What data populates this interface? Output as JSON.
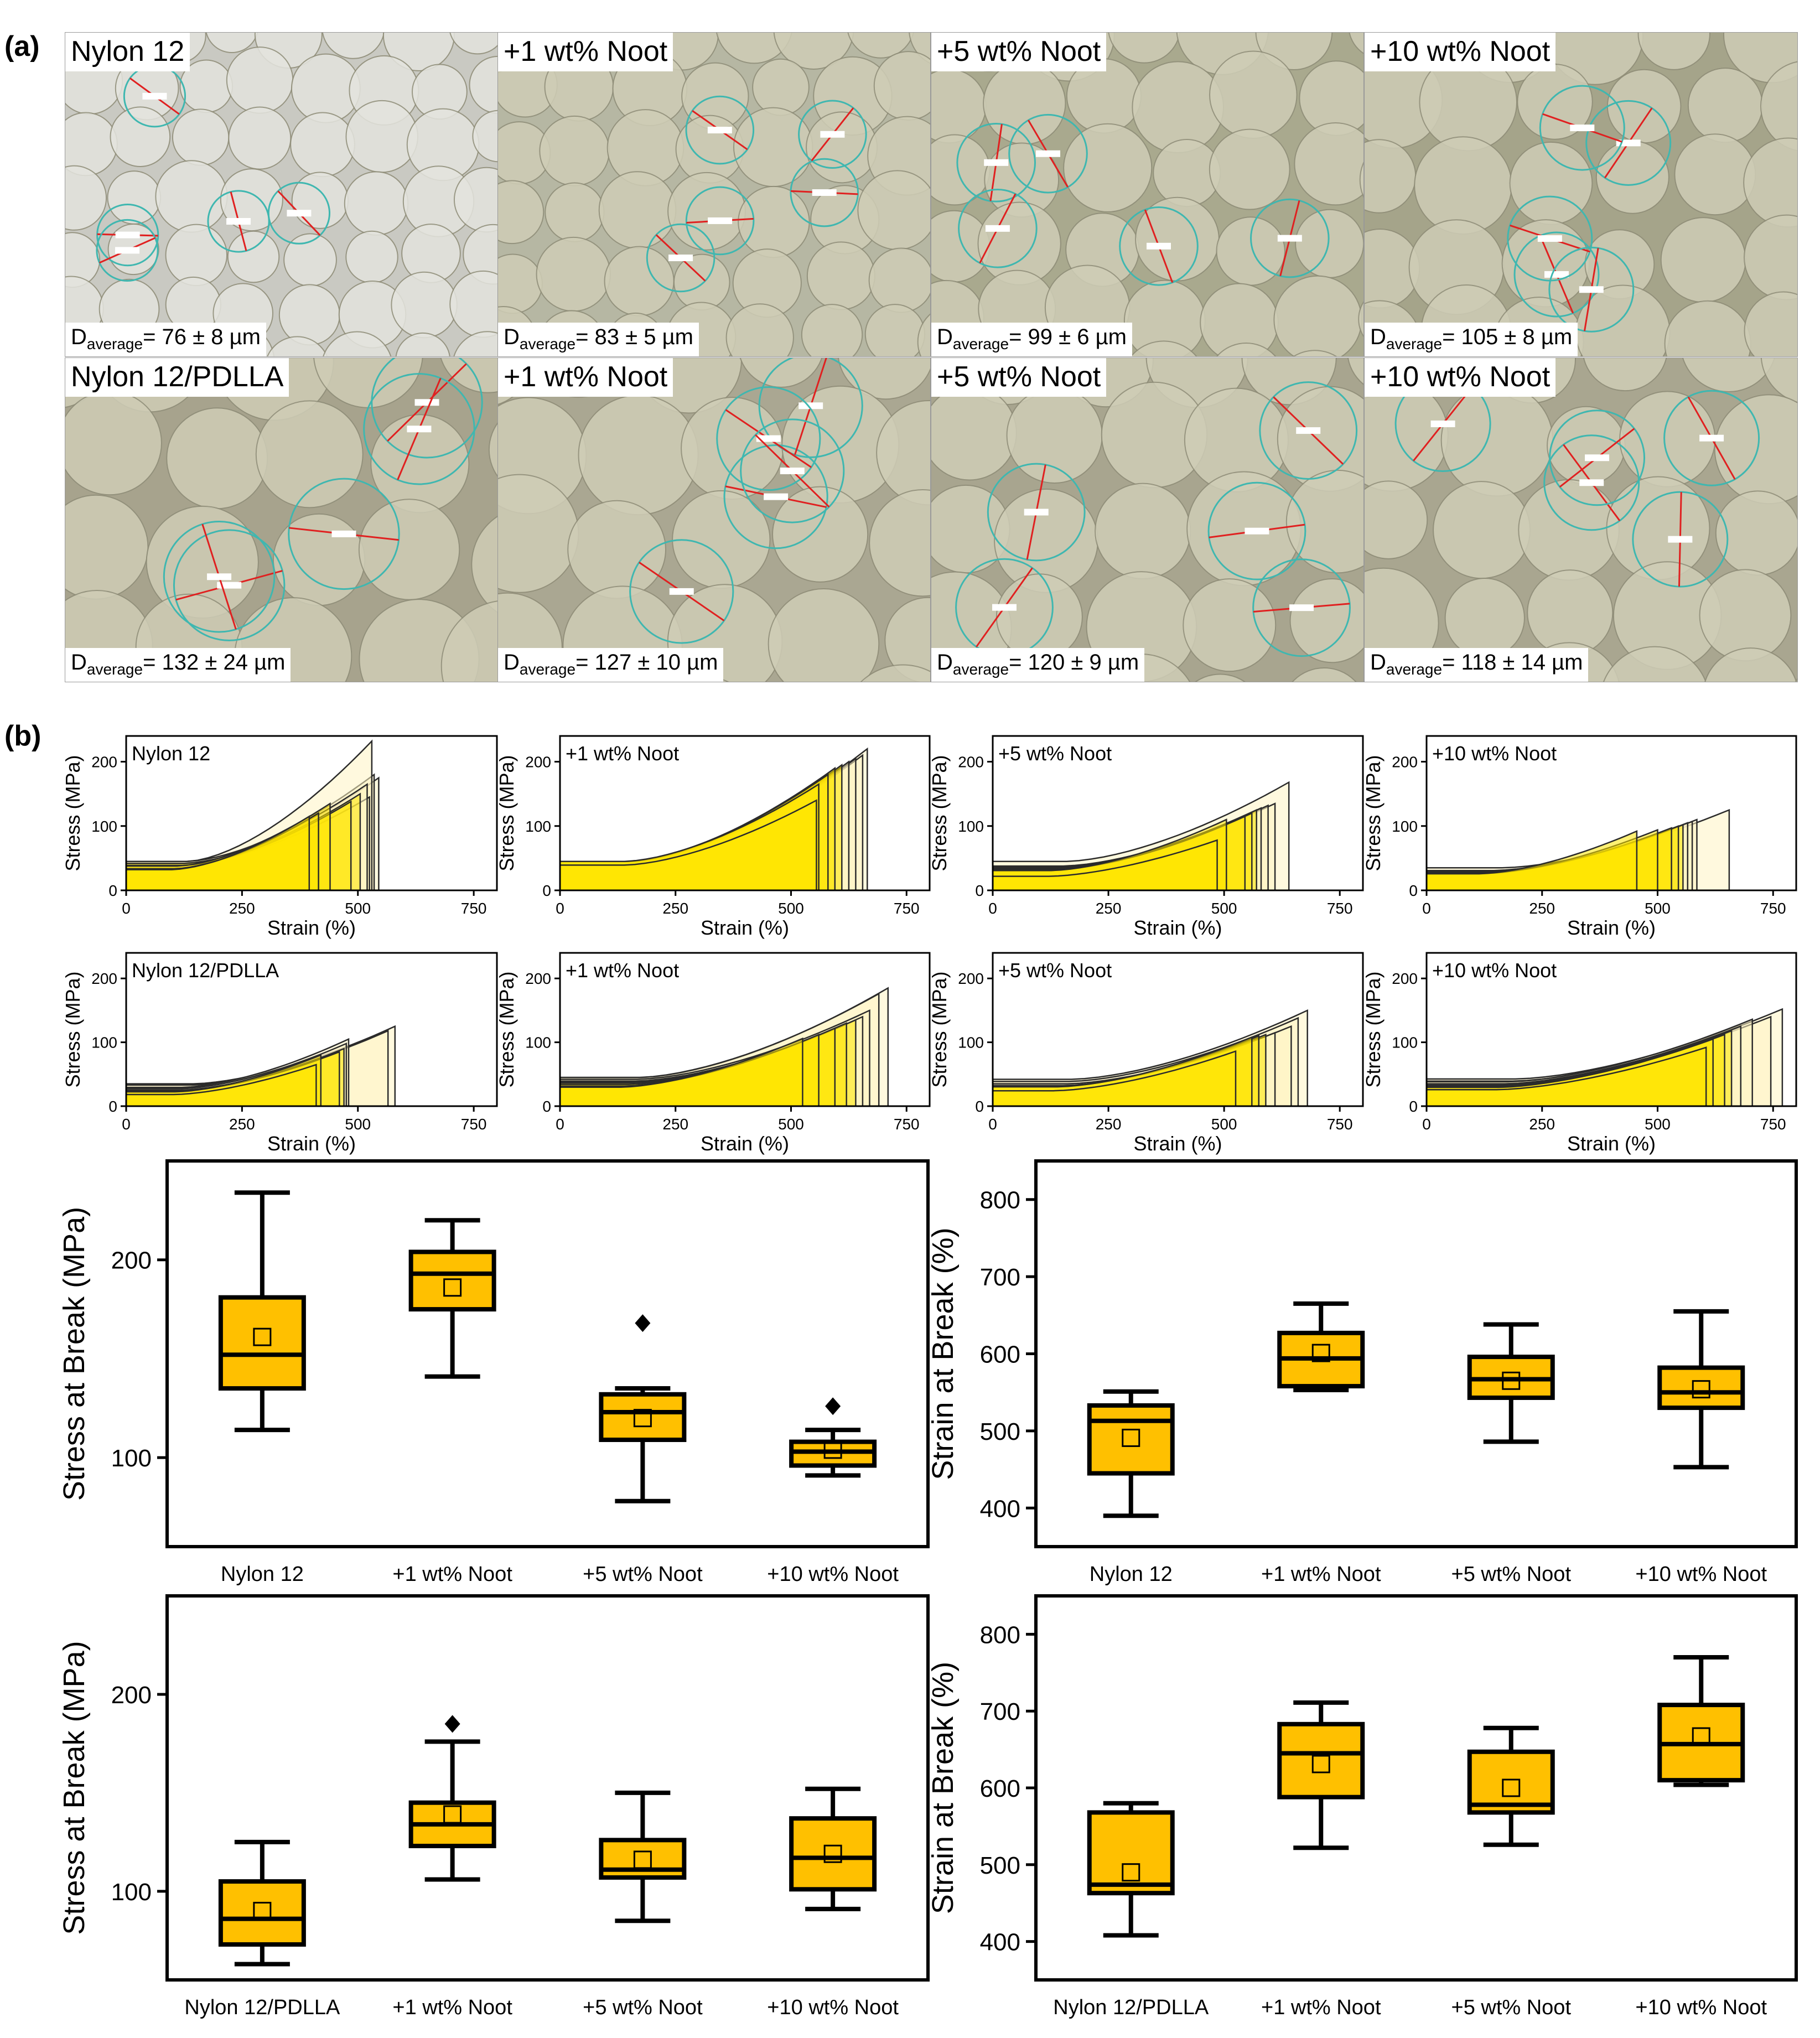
{
  "panel_a": {
    "letter": "(a)",
    "rows": [
      [
        {
          "label": "Nylon 12",
          "davg_prefix": "D",
          "davg_sub": "average",
          "davg_value": "= 76 ± 8 µm",
          "tone": "#c9c9c2"
        },
        {
          "label": "+1 wt% Noot",
          "davg_prefix": "D",
          "davg_sub": "average",
          "davg_value": "= 83 ± 5 µm",
          "tone": "#b6b7a3"
        },
        {
          "label": "+5 wt% Noot",
          "davg_prefix": "D",
          "davg_sub": "average",
          "davg_value": "= 99 ± 6 µm",
          "tone": "#a9a98e"
        },
        {
          "label": "+10 wt% Noot",
          "davg_prefix": "D",
          "davg_sub": "average",
          "davg_value": "= 105 ± 8 µm",
          "tone": "#a5a48a"
        }
      ],
      [
        {
          "label": "Nylon 12/PDLLA",
          "davg_prefix": "D",
          "davg_sub": "average",
          "davg_value": "= 132 ± 24 µm",
          "tone": "#a7a38d"
        },
        {
          "label": "+1 wt% Noot",
          "davg_prefix": "D",
          "davg_sub": "average",
          "davg_value": "= 127 ± 10 µm",
          "tone": "#aaa792"
        },
        {
          "label": "+5 wt% Noot",
          "davg_prefix": "D",
          "davg_sub": "average",
          "davg_value": "= 120 ± 9 µm",
          "tone": "#a8a58f"
        },
        {
          "label": "+10 wt% Noot",
          "davg_prefix": "D",
          "davg_sub": "average",
          "davg_value": "= 118 ± 14 µm",
          "tone": "#a9a690"
        }
      ]
    ]
  },
  "panel_b": {
    "letter": "(b)"
  },
  "colors": {
    "box_fill": "#ffc000",
    "curve_fill_light": "#fff4c2",
    "curve_fill_dark": "#ffe600",
    "curve_stroke": "#2b2b2b"
  },
  "chart_data": [
    {
      "type": "line",
      "title": "Nylon 12",
      "xlabel": "Strain (%)",
      "ylabel": "Stress (MPa)",
      "xlim": [
        0,
        800
      ],
      "ylim": [
        0,
        240
      ],
      "xticks": [
        0,
        250,
        500,
        750
      ],
      "yticks": [
        0,
        100,
        200
      ],
      "curves": [
        {
          "break_strain": 530,
          "break_stress": 232
        },
        {
          "break_strain": 535,
          "break_stress": 180
        },
        {
          "break_strain": 545,
          "break_stress": 175
        },
        {
          "break_strain": 520,
          "break_stress": 165
        },
        {
          "break_strain": 505,
          "break_stress": 150
        },
        {
          "break_strain": 525,
          "break_stress": 145
        },
        {
          "break_strain": 485,
          "break_stress": 138
        },
        {
          "break_strain": 440,
          "break_stress": 135
        },
        {
          "break_strain": 415,
          "break_stress": 120
        },
        {
          "break_strain": 395,
          "break_stress": 115
        }
      ]
    },
    {
      "type": "line",
      "title": "+1 wt% Noot",
      "xlabel": "Strain (%)",
      "ylabel": "Stress (MPa)",
      "xlim": [
        0,
        800
      ],
      "ylim": [
        0,
        240
      ],
      "xticks": [
        0,
        250,
        500,
        750
      ],
      "yticks": [
        0,
        100,
        200
      ],
      "curves": [
        {
          "break_strain": 665,
          "break_stress": 220
        },
        {
          "break_strain": 655,
          "break_stress": 210
        },
        {
          "break_strain": 640,
          "break_stress": 205
        },
        {
          "break_strain": 625,
          "break_stress": 200
        },
        {
          "break_strain": 610,
          "break_stress": 195
        },
        {
          "break_strain": 595,
          "break_stress": 190
        },
        {
          "break_strain": 580,
          "break_stress": 180
        },
        {
          "break_strain": 560,
          "break_stress": 165
        },
        {
          "break_strain": 555,
          "break_stress": 140
        }
      ]
    },
    {
      "type": "line",
      "title": "+5 wt% Noot",
      "xlabel": "Strain (%)",
      "ylabel": "Stress (MPa)",
      "xlim": [
        0,
        800
      ],
      "ylim": [
        0,
        240
      ],
      "xticks": [
        0,
        250,
        500,
        750
      ],
      "yticks": [
        0,
        100,
        200
      ],
      "curves": [
        {
          "break_strain": 640,
          "break_stress": 168
        },
        {
          "break_strain": 610,
          "break_stress": 135
        },
        {
          "break_strain": 595,
          "break_stress": 132
        },
        {
          "break_strain": 580,
          "break_stress": 128
        },
        {
          "break_strain": 570,
          "break_stress": 125
        },
        {
          "break_strain": 560,
          "break_stress": 120
        },
        {
          "break_strain": 545,
          "break_stress": 115
        },
        {
          "break_strain": 505,
          "break_stress": 110
        },
        {
          "break_strain": 485,
          "break_stress": 78
        }
      ]
    },
    {
      "type": "line",
      "title": "+10 wt% Noot",
      "xlabel": "Strain (%)",
      "ylabel": "Stress (MPa)",
      "xlim": [
        0,
        800
      ],
      "ylim": [
        0,
        240
      ],
      "xticks": [
        0,
        250,
        500,
        750
      ],
      "yticks": [
        0,
        100,
        200
      ],
      "curves": [
        {
          "break_strain": 655,
          "break_stress": 125
        },
        {
          "break_strain": 585,
          "break_stress": 110
        },
        {
          "break_strain": 575,
          "break_stress": 107
        },
        {
          "break_strain": 565,
          "break_stress": 105
        },
        {
          "break_strain": 555,
          "break_stress": 102
        },
        {
          "break_strain": 545,
          "break_stress": 100
        },
        {
          "break_strain": 530,
          "break_stress": 97
        },
        {
          "break_strain": 500,
          "break_stress": 94
        },
        {
          "break_strain": 455,
          "break_stress": 92
        }
      ]
    },
    {
      "type": "line",
      "title": "Nylon 12/PDLLA",
      "xlabel": "Strain (%)",
      "ylabel": "Stress (MPa)",
      "xlim": [
        0,
        800
      ],
      "ylim": [
        0,
        240
      ],
      "xticks": [
        0,
        250,
        500,
        750
      ],
      "yticks": [
        0,
        100,
        200
      ],
      "curves": [
        {
          "break_strain": 580,
          "break_stress": 125
        },
        {
          "break_strain": 565,
          "break_stress": 118
        },
        {
          "break_strain": 480,
          "break_stress": 105
        },
        {
          "break_strain": 475,
          "break_stress": 98
        },
        {
          "break_strain": 470,
          "break_stress": 90
        },
        {
          "break_strain": 460,
          "break_stress": 85
        },
        {
          "break_strain": 420,
          "break_stress": 80
        },
        {
          "break_strain": 410,
          "break_stress": 65
        }
      ]
    },
    {
      "type": "line",
      "title": "+1 wt% Noot",
      "xlabel": "Strain (%)",
      "ylabel": "Stress (MPa)",
      "xlim": [
        0,
        800
      ],
      "ylim": [
        0,
        240
      ],
      "xticks": [
        0,
        250,
        500,
        750
      ],
      "yticks": [
        0,
        100,
        200
      ],
      "curves": [
        {
          "break_strain": 710,
          "break_stress": 185
        },
        {
          "break_strain": 690,
          "break_stress": 176
        },
        {
          "break_strain": 670,
          "break_stress": 150
        },
        {
          "break_strain": 655,
          "break_stress": 140
        },
        {
          "break_strain": 640,
          "break_stress": 135
        },
        {
          "break_strain": 620,
          "break_stress": 130
        },
        {
          "break_strain": 595,
          "break_stress": 122
        },
        {
          "break_strain": 560,
          "break_stress": 112
        },
        {
          "break_strain": 525,
          "break_stress": 106
        }
      ]
    },
    {
      "type": "line",
      "title": "+5 wt% Noot",
      "xlabel": "Strain (%)",
      "ylabel": "Stress (MPa)",
      "xlim": [
        0,
        800
      ],
      "ylim": [
        0,
        240
      ],
      "xticks": [
        0,
        250,
        500,
        750
      ],
      "yticks": [
        0,
        100,
        200
      ],
      "curves": [
        {
          "break_strain": 680,
          "break_stress": 150
        },
        {
          "break_strain": 660,
          "break_stress": 138
        },
        {
          "break_strain": 645,
          "break_stress": 125
        },
        {
          "break_strain": 610,
          "break_stress": 115
        },
        {
          "break_strain": 590,
          "break_stress": 112
        },
        {
          "break_strain": 575,
          "break_stress": 110
        },
        {
          "break_strain": 560,
          "break_stress": 108
        },
        {
          "break_strain": 525,
          "break_stress": 86
        }
      ]
    },
    {
      "type": "line",
      "title": "+10 wt% Noot",
      "xlabel": "Strain (%)",
      "ylabel": "Stress (MPa)",
      "xlim": [
        0,
        800
      ],
      "ylim": [
        0,
        240
      ],
      "xticks": [
        0,
        250,
        500,
        750
      ],
      "yticks": [
        0,
        100,
        200
      ],
      "curves": [
        {
          "break_strain": 770,
          "break_stress": 152
        },
        {
          "break_strain": 745,
          "break_stress": 140
        },
        {
          "break_strain": 705,
          "break_stress": 136
        },
        {
          "break_strain": 680,
          "break_stress": 125
        },
        {
          "break_strain": 660,
          "break_stress": 118
        },
        {
          "break_strain": 645,
          "break_stress": 112
        },
        {
          "break_strain": 620,
          "break_stress": 105
        },
        {
          "break_strain": 605,
          "break_stress": 92
        }
      ]
    },
    {
      "type": "box",
      "xlabel": "",
      "ylabel": "Stress at Break (MPa)",
      "ylim": [
        55,
        250
      ],
      "yticks": [
        100,
        200
      ],
      "categories": [
        "Nylon 12",
        "+1 wt% Noot",
        "+5 wt% Noot",
        "+10 wt% Noot"
      ],
      "boxes": [
        {
          "whisker_low": 114,
          "q1": 135,
          "median": 152,
          "q3": 181,
          "whisker_high": 234,
          "mean": 161,
          "outliers": []
        },
        {
          "whisker_low": 141,
          "q1": 175,
          "median": 193,
          "q3": 204,
          "whisker_high": 220,
          "mean": 186,
          "outliers": []
        },
        {
          "whisker_low": 78,
          "q1": 109,
          "median": 123,
          "q3": 132,
          "whisker_high": 135,
          "mean": 120,
          "outliers": [
            168
          ]
        },
        {
          "whisker_low": 91,
          "q1": 96,
          "median": 103,
          "q3": 108,
          "whisker_high": 114,
          "mean": 104,
          "outliers": [
            126
          ]
        }
      ]
    },
    {
      "type": "box",
      "xlabel": "",
      "ylabel": "Strain at Break (%)",
      "ylim": [
        350,
        850
      ],
      "yticks": [
        400,
        500,
        600,
        700,
        800
      ],
      "categories": [
        "Nylon 12",
        "+1 wt% Noot",
        "+5 wt% Noot",
        "+10 wt% Noot"
      ],
      "boxes": [
        {
          "whisker_low": 390,
          "q1": 445,
          "median": 513,
          "q3": 533,
          "whisker_high": 551,
          "mean": 491,
          "outliers": []
        },
        {
          "whisker_low": 553,
          "q1": 558,
          "median": 594,
          "q3": 627,
          "whisker_high": 665,
          "mean": 601,
          "outliers": []
        },
        {
          "whisker_low": 486,
          "q1": 543,
          "median": 567,
          "q3": 596,
          "whisker_high": 638,
          "mean": 565,
          "outliers": []
        },
        {
          "whisker_low": 453,
          "q1": 530,
          "median": 550,
          "q3": 582,
          "whisker_high": 655,
          "mean": 554,
          "outliers": []
        }
      ]
    },
    {
      "type": "box",
      "xlabel": "",
      "ylabel": "Stress at Break (MPa)",
      "ylim": [
        55,
        250
      ],
      "yticks": [
        100,
        200
      ],
      "categories": [
        "Nylon 12/PDLLA",
        "+1 wt% Noot",
        "+5 wt% Noot",
        "+10 wt% Noot"
      ],
      "boxes": [
        {
          "whisker_low": 63,
          "q1": 73,
          "median": 86,
          "q3": 105,
          "whisker_high": 125,
          "mean": 90,
          "outliers": []
        },
        {
          "whisker_low": 106,
          "q1": 123,
          "median": 134,
          "q3": 145,
          "whisker_high": 176,
          "mean": 139,
          "outliers": [
            185
          ]
        },
        {
          "whisker_low": 85,
          "q1": 107,
          "median": 111,
          "q3": 126,
          "whisker_high": 150,
          "mean": 116,
          "outliers": []
        },
        {
          "whisker_low": 91,
          "q1": 101,
          "median": 117,
          "q3": 137,
          "whisker_high": 152,
          "mean": 119,
          "outliers": []
        }
      ]
    },
    {
      "type": "box",
      "xlabel": "",
      "ylabel": "Strain at Break (%)",
      "ylim": [
        350,
        850
      ],
      "yticks": [
        400,
        500,
        600,
        700,
        800
      ],
      "categories": [
        "Nylon 12/PDLLA",
        "+1 wt% Noot",
        "+5 wt% Noot",
        "+10 wt% Noot"
      ],
      "boxes": [
        {
          "whisker_low": 408,
          "q1": 463,
          "median": 474,
          "q3": 568,
          "whisker_high": 580,
          "mean": 490,
          "outliers": []
        },
        {
          "whisker_low": 522,
          "q1": 588,
          "median": 645,
          "q3": 683,
          "whisker_high": 711,
          "mean": 631,
          "outliers": []
        },
        {
          "whisker_low": 526,
          "q1": 568,
          "median": 578,
          "q3": 647,
          "whisker_high": 678,
          "mean": 600,
          "outliers": []
        },
        {
          "whisker_low": 604,
          "q1": 610,
          "median": 657,
          "q3": 708,
          "whisker_high": 770,
          "mean": 667,
          "outliers": []
        }
      ]
    }
  ]
}
